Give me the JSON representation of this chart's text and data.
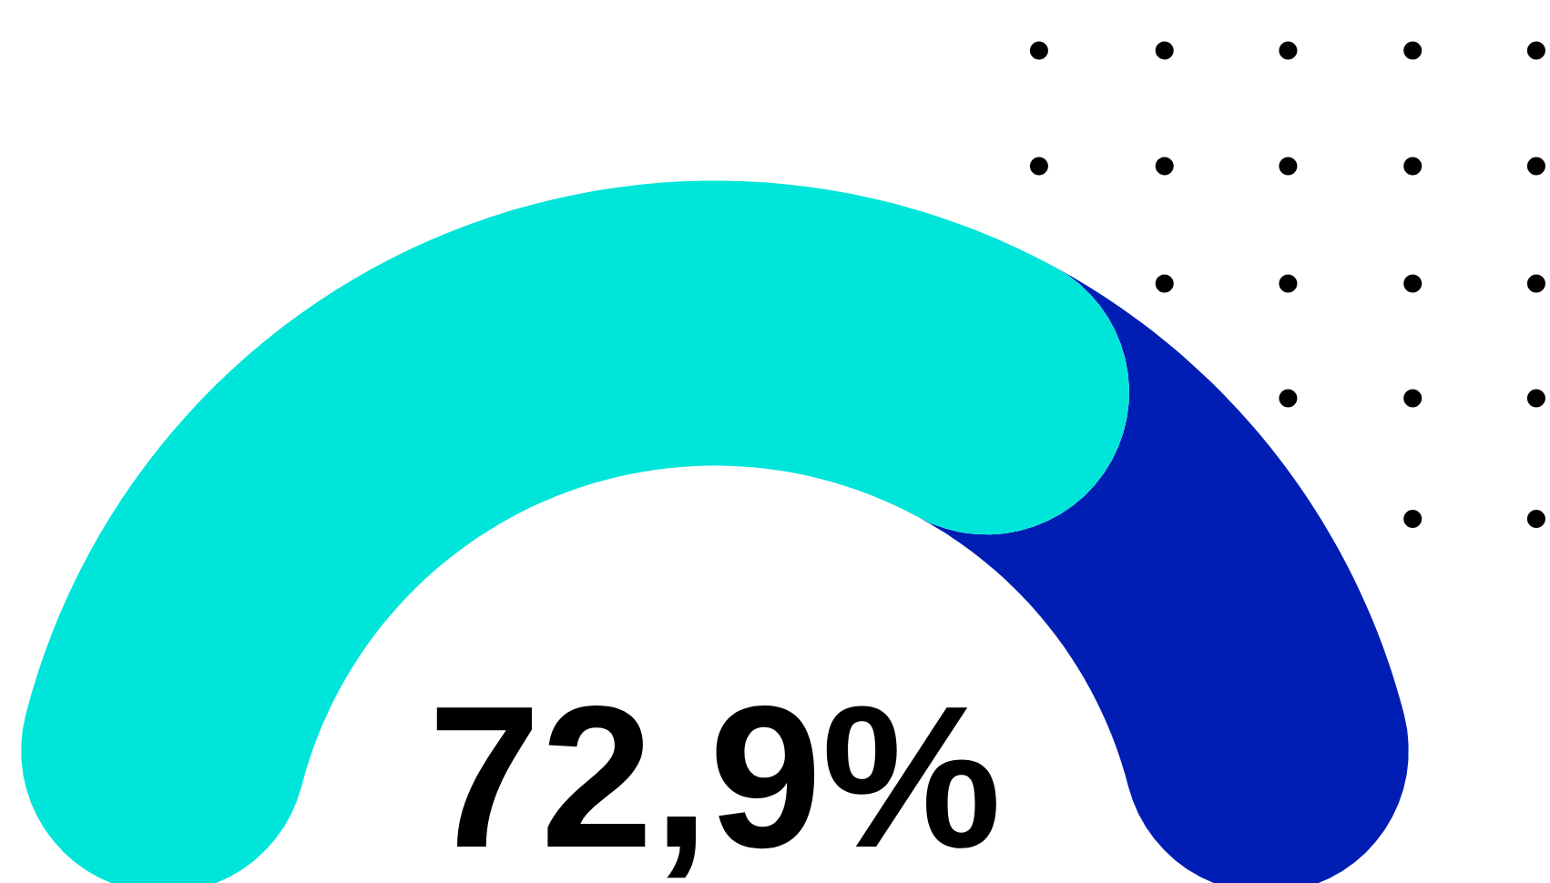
{
  "chart_data": {
    "type": "donut",
    "categories": [
      null,
      null
    ],
    "values": [
      72.9,
      27.1
    ],
    "colors": [
      "#00e5d9",
      "#001eb4"
    ],
    "value_labels": [
      "72,9%",
      null
    ]
  }
}
